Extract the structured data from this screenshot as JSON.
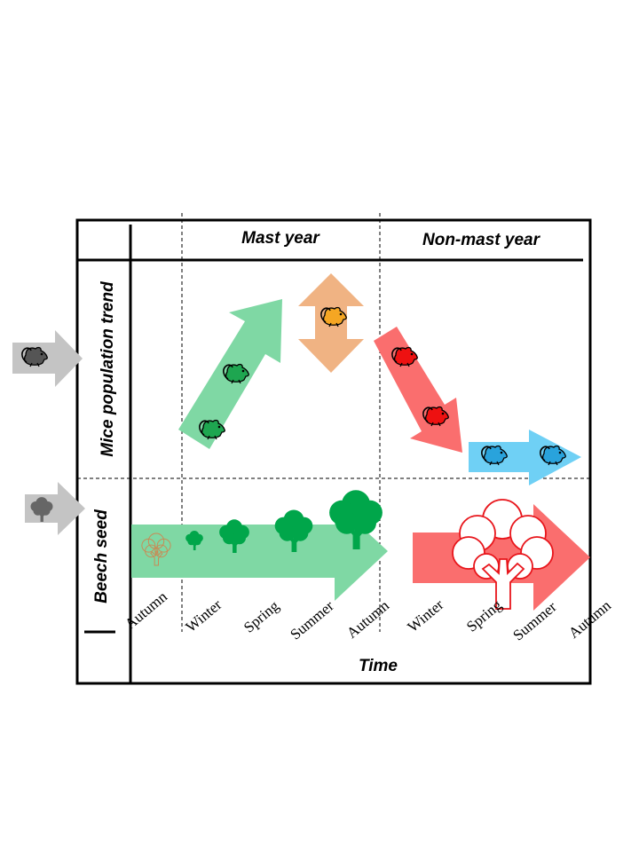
{
  "headers": {
    "mast_year": "Mast year",
    "non_mast_year": "Non-mast year"
  },
  "row_labels": {
    "mice": "Mice population trend",
    "beech": "Beech seed"
  },
  "x_axis": {
    "title": "Time",
    "seasons": [
      "Autumn",
      "Winter",
      "Spring",
      "Summer",
      "Autumn",
      "Winter",
      "Spring",
      "Summer",
      "Autumn"
    ]
  },
  "colors": {
    "increase": "#7fd8a4",
    "stable": "#f0b383",
    "decrease": "#fa6e6e",
    "low": "#6fd0f5",
    "mouse_green": "#1ea650",
    "mouse_orange": "#f5a623",
    "mouse_red": "#ee1111",
    "mouse_blue": "#29a3dc",
    "tree_green": "#00a64a",
    "tree_outline": "#e8151b",
    "legend_gray": "#c4c4c4"
  },
  "icons": [
    "mouse-icon",
    "tree-icon"
  ]
}
